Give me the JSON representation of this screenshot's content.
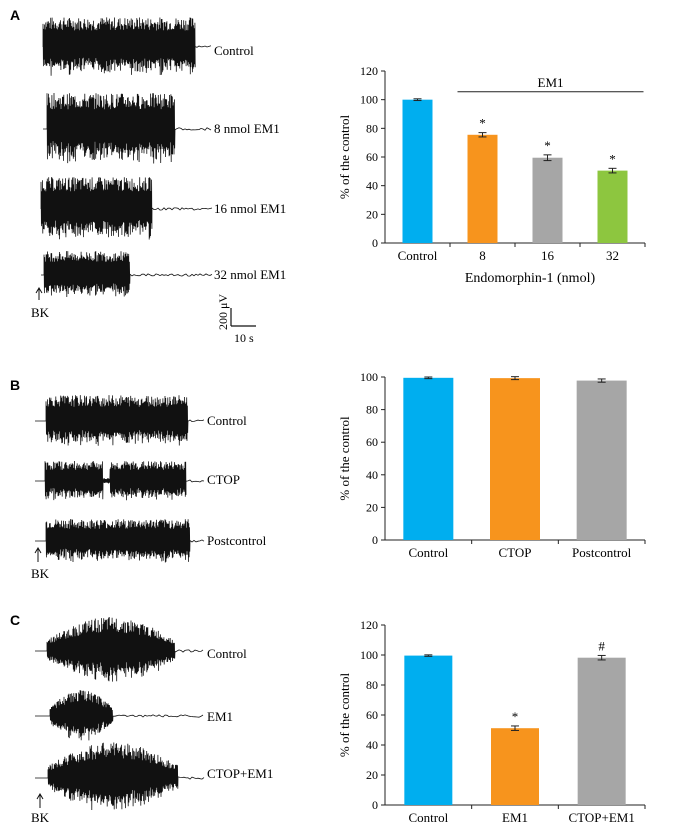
{
  "panels": {
    "A": {
      "letter": "A",
      "traces": [
        "Control",
        "8 nmol EM1",
        "16 nmol EM1",
        "32 nmol EM1"
      ],
      "stimulus": "BK",
      "scale": {
        "amplitude": "200 μV",
        "time": "10 s"
      }
    },
    "B": {
      "letter": "B",
      "traces": [
        "Control",
        "CTOP",
        "Postcontrol"
      ],
      "stimulus": "BK"
    },
    "C": {
      "letter": "C",
      "traces": [
        "Control",
        "EM1",
        "CTOP+EM1"
      ],
      "stimulus": "BK"
    }
  },
  "chart_data": [
    {
      "type": "bar",
      "panel": "A",
      "categories": [
        "Control",
        "8",
        "16",
        "32"
      ],
      "values": [
        100,
        75.5,
        59.5,
        50.5
      ],
      "errors": [
        0.6,
        1.5,
        2.0,
        1.6
      ],
      "colors": [
        "#00AEEF",
        "#F7941D",
        "#A6A6A6",
        "#8DC63F"
      ],
      "markers": [
        "",
        "*",
        "*",
        "*"
      ],
      "xlabel": "Endomorphin-1 (nmol)",
      "ylabel": "% of the control",
      "ylim": [
        0,
        120
      ],
      "yticks": [
        0,
        20,
        40,
        60,
        80,
        100,
        120
      ],
      "group_label": "EM1"
    },
    {
      "type": "bar",
      "panel": "B",
      "categories": [
        "Control",
        "CTOP",
        "Postcontrol"
      ],
      "values": [
        99.5,
        99.3,
        97.8
      ],
      "errors": [
        0.5,
        0.9,
        1.0
      ],
      "colors": [
        "#00AEEF",
        "#F7941D",
        "#A6A6A6"
      ],
      "markers": [
        "",
        "",
        ""
      ],
      "xlabel": "",
      "ylabel": "% of the control",
      "ylim": [
        0,
        100
      ],
      "yticks": [
        0,
        20,
        40,
        60,
        80,
        100
      ]
    },
    {
      "type": "bar",
      "panel": "C",
      "categories": [
        "Control",
        "EM1",
        "CTOP+EM1"
      ],
      "values": [
        99.6,
        51.2,
        98.2
      ],
      "errors": [
        0.5,
        1.5,
        1.5
      ],
      "colors": [
        "#00AEEF",
        "#F7941D",
        "#A6A6A6"
      ],
      "markers": [
        "",
        "*",
        "#"
      ],
      "xlabel": "",
      "ylabel": "% of the control",
      "ylim": [
        0,
        120
      ],
      "yticks": [
        0,
        20,
        40,
        60,
        80,
        100,
        120
      ]
    }
  ]
}
